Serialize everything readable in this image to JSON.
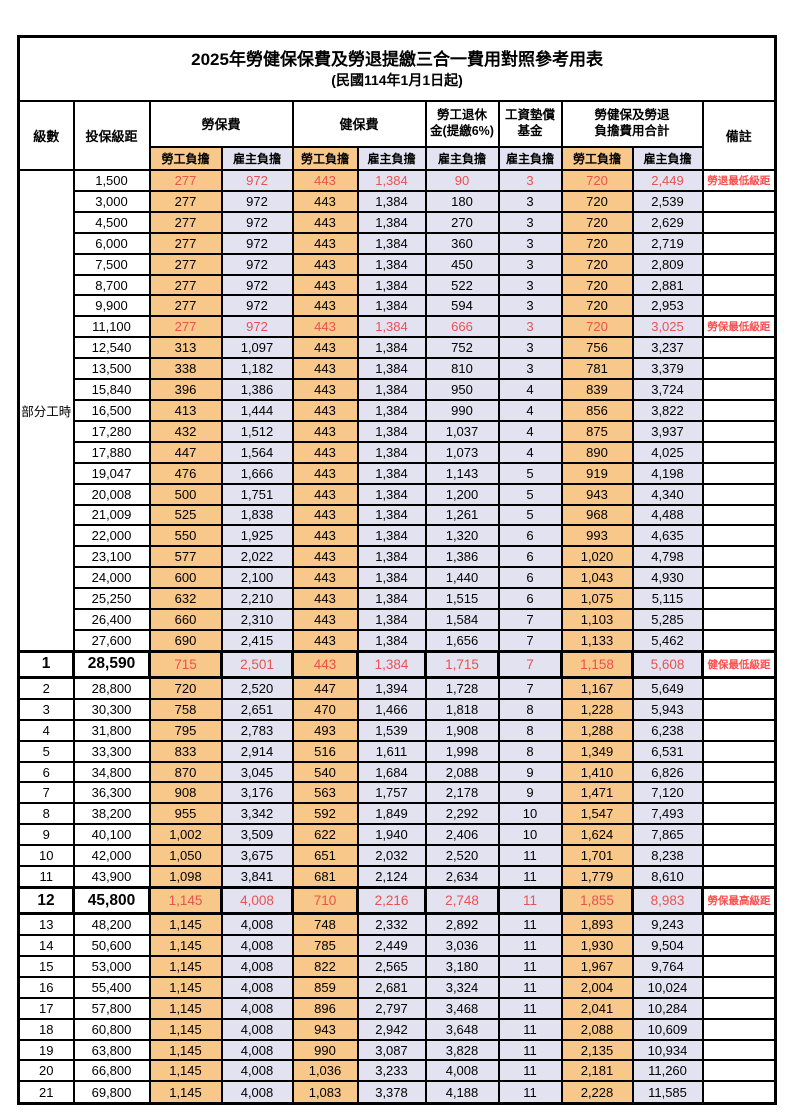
{
  "title": "2025年勞健保保費及勞退提繳三合一費用對照參考用表",
  "subtitle": "(民國114年1月1日起)",
  "colors": {
    "labor_column_bg": "#F8C78A",
    "employer_column_bg": "#E2E2F0",
    "highlight_value_red": "#E8534F",
    "remark_red": "#FB4F4F",
    "border": "#000000"
  },
  "header": {
    "level": "級數",
    "bracket": "投保級距",
    "labor_insurance": "勞保費",
    "health_insurance": "健保費",
    "pension_line1": "勞工退休",
    "pension_line2": "金(提繳6%)",
    "wage_fund_line1": "工資墊償",
    "wage_fund_line2": "基金",
    "total_line1": "勞健保及勞退",
    "total_line2": "負擔費用合計",
    "remark": "備註",
    "labor_burden": "勞工負擔",
    "employer_burden": "雇主負擔"
  },
  "part_time_label": "部分工時",
  "part_time_rowspan": 23,
  "rows": [
    {
      "level": "",
      "bracket": "1,500",
      "values": [
        "277",
        "972",
        "443",
        "1,384",
        "90",
        "3",
        "720",
        "2,449"
      ],
      "remark": "勞退最低級距",
      "red": true,
      "key": false
    },
    {
      "level": "",
      "bracket": "3,000",
      "values": [
        "277",
        "972",
        "443",
        "1,384",
        "180",
        "3",
        "720",
        "2,539"
      ],
      "remark": "",
      "red": false,
      "key": false
    },
    {
      "level": "",
      "bracket": "4,500",
      "values": [
        "277",
        "972",
        "443",
        "1,384",
        "270",
        "3",
        "720",
        "2,629"
      ],
      "remark": "",
      "red": false,
      "key": false
    },
    {
      "level": "",
      "bracket": "6,000",
      "values": [
        "277",
        "972",
        "443",
        "1,384",
        "360",
        "3",
        "720",
        "2,719"
      ],
      "remark": "",
      "red": false,
      "key": false
    },
    {
      "level": "",
      "bracket": "7,500",
      "values": [
        "277",
        "972",
        "443",
        "1,384",
        "450",
        "3",
        "720",
        "2,809"
      ],
      "remark": "",
      "red": false,
      "key": false
    },
    {
      "level": "",
      "bracket": "8,700",
      "values": [
        "277",
        "972",
        "443",
        "1,384",
        "522",
        "3",
        "720",
        "2,881"
      ],
      "remark": "",
      "red": false,
      "key": false
    },
    {
      "level": "",
      "bracket": "9,900",
      "values": [
        "277",
        "972",
        "443",
        "1,384",
        "594",
        "3",
        "720",
        "2,953"
      ],
      "remark": "",
      "red": false,
      "key": false
    },
    {
      "level": "",
      "bracket": "11,100",
      "values": [
        "277",
        "972",
        "443",
        "1,384",
        "666",
        "3",
        "720",
        "3,025"
      ],
      "remark": "勞保最低級距",
      "red": true,
      "key": false
    },
    {
      "level": "",
      "bracket": "12,540",
      "values": [
        "313",
        "1,097",
        "443",
        "1,384",
        "752",
        "3",
        "756",
        "3,237"
      ],
      "remark": "",
      "red": false,
      "key": false
    },
    {
      "level": "",
      "bracket": "13,500",
      "values": [
        "338",
        "1,182",
        "443",
        "1,384",
        "810",
        "3",
        "781",
        "3,379"
      ],
      "remark": "",
      "red": false,
      "key": false
    },
    {
      "level": "",
      "bracket": "15,840",
      "values": [
        "396",
        "1,386",
        "443",
        "1,384",
        "950",
        "4",
        "839",
        "3,724"
      ],
      "remark": "",
      "red": false,
      "key": false
    },
    {
      "level": "",
      "bracket": "16,500",
      "values": [
        "413",
        "1,444",
        "443",
        "1,384",
        "990",
        "4",
        "856",
        "3,822"
      ],
      "remark": "",
      "red": false,
      "key": false
    },
    {
      "level": "",
      "bracket": "17,280",
      "values": [
        "432",
        "1,512",
        "443",
        "1,384",
        "1,037",
        "4",
        "875",
        "3,937"
      ],
      "remark": "",
      "red": false,
      "key": false
    },
    {
      "level": "",
      "bracket": "17,880",
      "values": [
        "447",
        "1,564",
        "443",
        "1,384",
        "1,073",
        "4",
        "890",
        "4,025"
      ],
      "remark": "",
      "red": false,
      "key": false
    },
    {
      "level": "",
      "bracket": "19,047",
      "values": [
        "476",
        "1,666",
        "443",
        "1,384",
        "1,143",
        "5",
        "919",
        "4,198"
      ],
      "remark": "",
      "red": false,
      "key": false
    },
    {
      "level": "",
      "bracket": "20,008",
      "values": [
        "500",
        "1,751",
        "443",
        "1,384",
        "1,200",
        "5",
        "943",
        "4,340"
      ],
      "remark": "",
      "red": false,
      "key": false
    },
    {
      "level": "",
      "bracket": "21,009",
      "values": [
        "525",
        "1,838",
        "443",
        "1,384",
        "1,261",
        "5",
        "968",
        "4,488"
      ],
      "remark": "",
      "red": false,
      "key": false
    },
    {
      "level": "",
      "bracket": "22,000",
      "values": [
        "550",
        "1,925",
        "443",
        "1,384",
        "1,320",
        "6",
        "993",
        "4,635"
      ],
      "remark": "",
      "red": false,
      "key": false
    },
    {
      "level": "",
      "bracket": "23,100",
      "values": [
        "577",
        "2,022",
        "443",
        "1,384",
        "1,386",
        "6",
        "1,020",
        "4,798"
      ],
      "remark": "",
      "red": false,
      "key": false
    },
    {
      "level": "",
      "bracket": "24,000",
      "values": [
        "600",
        "2,100",
        "443",
        "1,384",
        "1,440",
        "6",
        "1,043",
        "4,930"
      ],
      "remark": "",
      "red": false,
      "key": false
    },
    {
      "level": "",
      "bracket": "25,250",
      "values": [
        "632",
        "2,210",
        "443",
        "1,384",
        "1,515",
        "6",
        "1,075",
        "5,115"
      ],
      "remark": "",
      "red": false,
      "key": false
    },
    {
      "level": "",
      "bracket": "26,400",
      "values": [
        "660",
        "2,310",
        "443",
        "1,384",
        "1,584",
        "7",
        "1,103",
        "5,285"
      ],
      "remark": "",
      "red": false,
      "key": false
    },
    {
      "level": "",
      "bracket": "27,600",
      "values": [
        "690",
        "2,415",
        "443",
        "1,384",
        "1,656",
        "7",
        "1,133",
        "5,462"
      ],
      "remark": "",
      "red": false,
      "key": false
    },
    {
      "level": "1",
      "bracket": "28,590",
      "values": [
        "715",
        "2,501",
        "443",
        "1,384",
        "1,715",
        "7",
        "1,158",
        "5,608"
      ],
      "remark": "健保最低級距",
      "red": true,
      "key": true
    },
    {
      "level": "2",
      "bracket": "28,800",
      "values": [
        "720",
        "2,520",
        "447",
        "1,394",
        "1,728",
        "7",
        "1,167",
        "5,649"
      ],
      "remark": "",
      "red": false,
      "key": false
    },
    {
      "level": "3",
      "bracket": "30,300",
      "values": [
        "758",
        "2,651",
        "470",
        "1,466",
        "1,818",
        "8",
        "1,228",
        "5,943"
      ],
      "remark": "",
      "red": false,
      "key": false
    },
    {
      "level": "4",
      "bracket": "31,800",
      "values": [
        "795",
        "2,783",
        "493",
        "1,539",
        "1,908",
        "8",
        "1,288",
        "6,238"
      ],
      "remark": "",
      "red": false,
      "key": false
    },
    {
      "level": "5",
      "bracket": "33,300",
      "values": [
        "833",
        "2,914",
        "516",
        "1,611",
        "1,998",
        "8",
        "1,349",
        "6,531"
      ],
      "remark": "",
      "red": false,
      "key": false
    },
    {
      "level": "6",
      "bracket": "34,800",
      "values": [
        "870",
        "3,045",
        "540",
        "1,684",
        "2,088",
        "9",
        "1,410",
        "6,826"
      ],
      "remark": "",
      "red": false,
      "key": false
    },
    {
      "level": "7",
      "bracket": "36,300",
      "values": [
        "908",
        "3,176",
        "563",
        "1,757",
        "2,178",
        "9",
        "1,471",
        "7,120"
      ],
      "remark": "",
      "red": false,
      "key": false
    },
    {
      "level": "8",
      "bracket": "38,200",
      "values": [
        "955",
        "3,342",
        "592",
        "1,849",
        "2,292",
        "10",
        "1,547",
        "7,493"
      ],
      "remark": "",
      "red": false,
      "key": false
    },
    {
      "level": "9",
      "bracket": "40,100",
      "values": [
        "1,002",
        "3,509",
        "622",
        "1,940",
        "2,406",
        "10",
        "1,624",
        "7,865"
      ],
      "remark": "",
      "red": false,
      "key": false
    },
    {
      "level": "10",
      "bracket": "42,000",
      "values": [
        "1,050",
        "3,675",
        "651",
        "2,032",
        "2,520",
        "11",
        "1,701",
        "8,238"
      ],
      "remark": "",
      "red": false,
      "key": false
    },
    {
      "level": "11",
      "bracket": "43,900",
      "values": [
        "1,098",
        "3,841",
        "681",
        "2,124",
        "2,634",
        "11",
        "1,779",
        "8,610"
      ],
      "remark": "",
      "red": false,
      "key": false
    },
    {
      "level": "12",
      "bracket": "45,800",
      "values": [
        "1,145",
        "4,008",
        "710",
        "2,216",
        "2,748",
        "11",
        "1,855",
        "8,983"
      ],
      "remark": "勞保最高級距",
      "red": true,
      "key": true
    },
    {
      "level": "13",
      "bracket": "48,200",
      "values": [
        "1,145",
        "4,008",
        "748",
        "2,332",
        "2,892",
        "11",
        "1,893",
        "9,243"
      ],
      "remark": "",
      "red": false,
      "key": false
    },
    {
      "level": "14",
      "bracket": "50,600",
      "values": [
        "1,145",
        "4,008",
        "785",
        "2,449",
        "3,036",
        "11",
        "1,930",
        "9,504"
      ],
      "remark": "",
      "red": false,
      "key": false
    },
    {
      "level": "15",
      "bracket": "53,000",
      "values": [
        "1,145",
        "4,008",
        "822",
        "2,565",
        "3,180",
        "11",
        "1,967",
        "9,764"
      ],
      "remark": "",
      "red": false,
      "key": false
    },
    {
      "level": "16",
      "bracket": "55,400",
      "values": [
        "1,145",
        "4,008",
        "859",
        "2,681",
        "3,324",
        "11",
        "2,004",
        "10,024"
      ],
      "remark": "",
      "red": false,
      "key": false
    },
    {
      "level": "17",
      "bracket": "57,800",
      "values": [
        "1,145",
        "4,008",
        "896",
        "2,797",
        "3,468",
        "11",
        "2,041",
        "10,284"
      ],
      "remark": "",
      "red": false,
      "key": false
    },
    {
      "level": "18",
      "bracket": "60,800",
      "values": [
        "1,145",
        "4,008",
        "943",
        "2,942",
        "3,648",
        "11",
        "2,088",
        "10,609"
      ],
      "remark": "",
      "red": false,
      "key": false
    },
    {
      "level": "19",
      "bracket": "63,800",
      "values": [
        "1,145",
        "4,008",
        "990",
        "3,087",
        "3,828",
        "11",
        "2,135",
        "10,934"
      ],
      "remark": "",
      "red": false,
      "key": false
    },
    {
      "level": "20",
      "bracket": "66,800",
      "values": [
        "1,145",
        "4,008",
        "1,036",
        "3,233",
        "4,008",
        "11",
        "2,181",
        "11,260"
      ],
      "remark": "",
      "red": false,
      "key": false
    },
    {
      "level": "21",
      "bracket": "69,800",
      "values": [
        "1,145",
        "4,008",
        "1,083",
        "3,378",
        "4,188",
        "11",
        "2,228",
        "11,585"
      ],
      "remark": "",
      "red": false,
      "key": false
    }
  ],
  "value_column_kinds": [
    "labor",
    "emp",
    "labor",
    "emp",
    "emp",
    "emp",
    "labor",
    "emp"
  ]
}
